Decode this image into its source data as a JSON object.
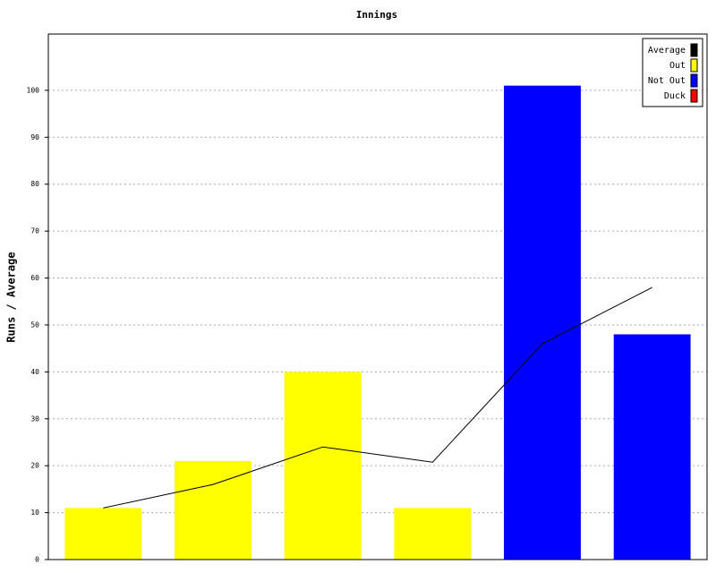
{
  "chart_data": {
    "type": "bar",
    "title": "Innings",
    "y_label": "Runs / Average",
    "categories": [
      null,
      null,
      null,
      null,
      null,
      null
    ],
    "series": [
      {
        "name": "Average",
        "type": "line",
        "color": "#000000",
        "values": [
          11,
          16,
          24,
          20.75,
          46,
          58
        ]
      },
      {
        "name": "Out",
        "type": "bar",
        "color": "#ffff00",
        "values": [
          11,
          21,
          40,
          11,
          null,
          null
        ]
      },
      {
        "name": "Not Out",
        "type": "bar",
        "color": "#0000ff",
        "values": [
          null,
          null,
          null,
          null,
          101,
          48
        ]
      },
      {
        "name": "Duck",
        "type": "bar",
        "color": "#ff0000",
        "values": [
          null,
          null,
          null,
          null,
          null,
          null
        ]
      }
    ],
    "ylim": [
      0,
      112
    ],
    "yticks": [
      0,
      10,
      20,
      30,
      40,
      50,
      60,
      70,
      80,
      90,
      100
    ],
    "grid": true,
    "legend": "top-right"
  }
}
